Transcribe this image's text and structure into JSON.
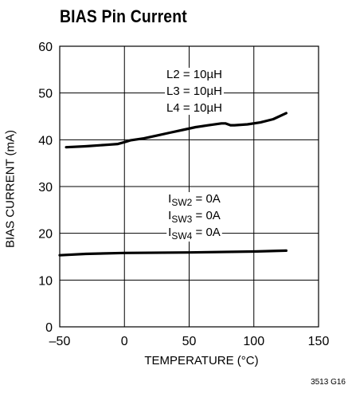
{
  "chart_data": {
    "type": "line",
    "title": "BIAS Pin Current",
    "xlabel": "TEMPERATURE (°C)",
    "ylabel": "BIAS CURRENT (mA)",
    "xlim": [
      -50,
      150
    ],
    "ylim": [
      0,
      60
    ],
    "xticks": [
      "–50",
      "0",
      "50",
      "100",
      "150"
    ],
    "xtick_values": [
      -50,
      0,
      50,
      100,
      150
    ],
    "yticks": [
      "0",
      "10",
      "20",
      "30",
      "40",
      "50",
      "60"
    ],
    "ytick_values": [
      0,
      10,
      20,
      30,
      40,
      50,
      60
    ],
    "grid": true,
    "series": [
      {
        "x": [
          -45,
          -30,
          -15,
          -5,
          0,
          5,
          15,
          25,
          35,
          45,
          55,
          65,
          75,
          78,
          82,
          85,
          95,
          105,
          115,
          125
        ],
        "y": [
          38.4,
          38.6,
          38.9,
          39.1,
          39.5,
          39.9,
          40.3,
          40.9,
          41.5,
          42.1,
          42.7,
          43.1,
          43.5,
          43.5,
          43.1,
          43.1,
          43.3,
          43.7,
          44.4,
          45.7
        ]
      },
      {
        "x": [
          -50,
          -30,
          0,
          50,
          100,
          125
        ],
        "y": [
          15.3,
          15.6,
          15.8,
          15.9,
          16.1,
          16.3
        ]
      }
    ],
    "annotations": [
      {
        "lines": [
          "L2 = 10µH",
          "L3 = 10µH",
          "L4 = 10µH"
        ]
      },
      {
        "lines": [
          {
            "main": "I",
            "sub": "SW2",
            "rest": " = 0A"
          },
          {
            "main": "I",
            "sub": "SW3",
            "rest": " = 0A"
          },
          {
            "main": "I",
            "sub": "SW4",
            "rest": " = 0A"
          }
        ]
      }
    ]
  },
  "figure_id": "3513 G16",
  "line_color": "#000000"
}
